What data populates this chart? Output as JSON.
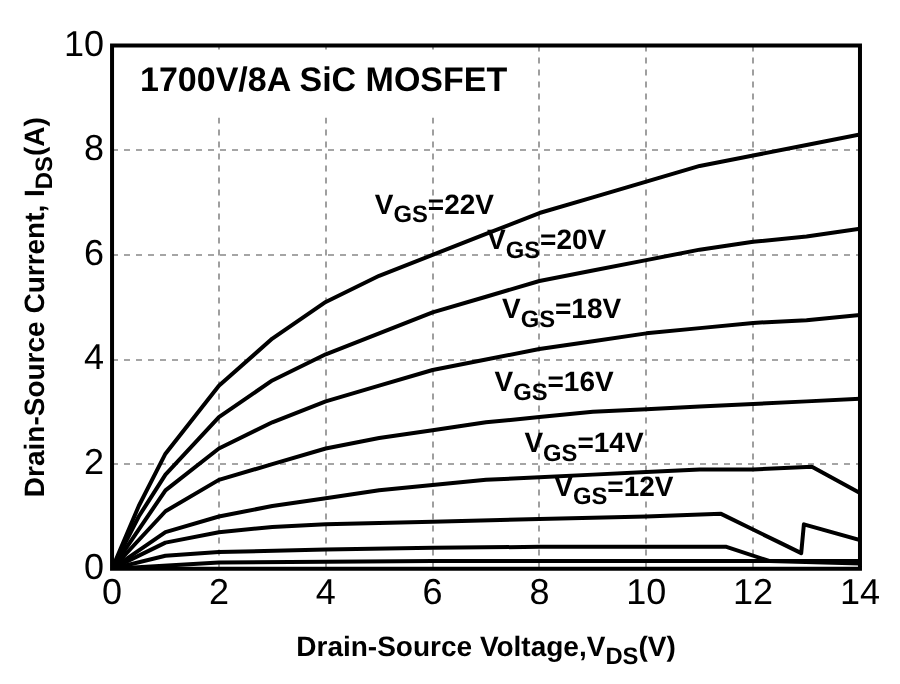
{
  "chart_data": {
    "type": "line",
    "title": "1700V/8A SiC MOSFET",
    "xlabel": "Drain-Source Voltage,V$_{DS}$(V)",
    "ylabel": "Drain-Source Current, I$_{DS}$(A)",
    "xlim": [
      0,
      14
    ],
    "ylim": [
      0,
      10
    ],
    "xticks": [
      0,
      2,
      4,
      6,
      8,
      10,
      12,
      14
    ],
    "yticks": [
      0,
      2,
      4,
      6,
      8,
      10
    ],
    "grid": true,
    "series": [
      {
        "name": "V$_{GS}$=22V",
        "color": "#000000",
        "x": [
          0,
          0.5,
          1,
          2,
          3,
          4,
          5,
          6,
          7,
          8,
          9,
          10,
          11,
          12,
          13,
          14
        ],
        "values": [
          0,
          1.2,
          2.2,
          3.5,
          4.4,
          5.1,
          5.6,
          6.0,
          6.4,
          6.8,
          7.1,
          7.4,
          7.7,
          7.9,
          8.1,
          8.3
        ]
      },
      {
        "name": "V$_{GS}$=20V",
        "color": "#000000",
        "x": [
          0,
          0.5,
          1,
          2,
          3,
          4,
          5,
          6,
          7,
          8,
          9,
          10,
          11,
          12,
          13,
          14
        ],
        "values": [
          0,
          1.0,
          1.8,
          2.9,
          3.6,
          4.1,
          4.5,
          4.9,
          5.2,
          5.5,
          5.7,
          5.9,
          6.1,
          6.25,
          6.35,
          6.5
        ]
      },
      {
        "name": "V$_{GS}$=18V",
        "color": "#000000",
        "x": [
          0,
          1,
          2,
          3,
          4,
          5,
          6,
          7,
          8,
          9,
          10,
          11,
          12,
          13,
          14
        ],
        "values": [
          0,
          1.5,
          2.3,
          2.8,
          3.2,
          3.5,
          3.8,
          4.0,
          4.2,
          4.35,
          4.5,
          4.6,
          4.7,
          4.75,
          4.85
        ]
      },
      {
        "name": "V$_{GS}$=16V",
        "color": "#000000",
        "x": [
          0,
          1,
          2,
          3,
          4,
          5,
          6,
          7,
          8,
          9,
          10,
          11,
          12,
          13,
          14
        ],
        "values": [
          0,
          1.1,
          1.7,
          2.0,
          2.3,
          2.5,
          2.65,
          2.8,
          2.9,
          3.0,
          3.05,
          3.1,
          3.15,
          3.2,
          3.25
        ]
      },
      {
        "name": "V$_{GS}$=14V",
        "color": "#000000",
        "x": [
          0,
          1,
          2,
          3,
          4,
          5,
          6,
          7,
          8,
          9,
          10,
          11,
          12,
          13.1,
          14
        ],
        "values": [
          0,
          0.7,
          1.0,
          1.2,
          1.35,
          1.5,
          1.6,
          1.7,
          1.75,
          1.8,
          1.85,
          1.9,
          1.9,
          1.95,
          1.45
        ]
      },
      {
        "name": "V$_{GS}$=12V",
        "color": "#000000",
        "x": [
          0,
          1,
          2,
          3,
          4,
          6,
          8,
          10,
          11.4,
          12.5,
          12.9,
          12.95,
          14
        ],
        "values": [
          0,
          0.5,
          0.7,
          0.8,
          0.85,
          0.9,
          0.95,
          1.0,
          1.05,
          0.5,
          0.3,
          0.85,
          0.55
        ]
      },
      {
        "color": "#000000",
        "x": [
          0,
          1,
          2,
          4,
          6,
          8,
          10,
          11.5,
          12.3,
          14
        ],
        "values": [
          0,
          0.25,
          0.32,
          0.37,
          0.4,
          0.42,
          0.42,
          0.42,
          0.15,
          0.1
        ]
      },
      {
        "color": "#000000",
        "x": [
          0,
          2,
          6,
          10,
          14
        ],
        "values": [
          0,
          0.12,
          0.15,
          0.15,
          0.15
        ]
      }
    ]
  }
}
